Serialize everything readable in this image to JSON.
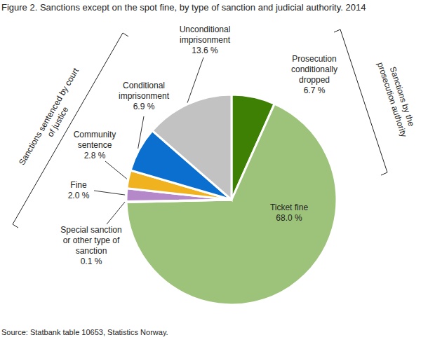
{
  "chart_data": {
    "type": "pie",
    "title": "Figure 2. Sanctions except on the spot fine, by type of sanction and judicial authority. 2014",
    "categories": [
      "Prosecution conditionally dropped",
      "Ticket fine",
      "Special sanction or other type of sanction",
      "Fine",
      "Community sentence",
      "Conditional imprisonment",
      "Unconditional imprisonment"
    ],
    "values": [
      6.7,
      68.0,
      0.1,
      2.0,
      2.8,
      6.9,
      13.6
    ],
    "value_labels": [
      "6.7 %",
      "68.0 %",
      "0.1 %",
      "2.0 %",
      "2.8 %",
      "6.9 %",
      "13.6 %"
    ],
    "colors": [
      "#3d8004",
      "#9dc37b",
      "#7030a0",
      "#b588c9",
      "#f0b21e",
      "#0b6fcf",
      "#c2c2c2"
    ],
    "data_labels": true,
    "annotations": [
      "Sanctions sentenced by court of justice",
      "Sanctions by the prosecution authority"
    ],
    "source": "Source: Statbank table 10653, Statistics Norway."
  }
}
